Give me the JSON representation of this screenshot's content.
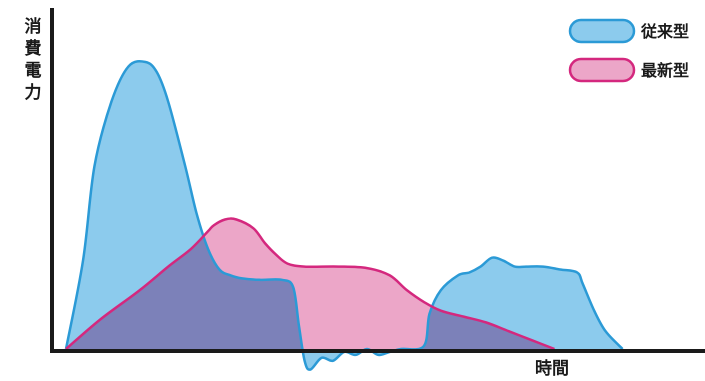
{
  "chart_data": {
    "type": "area",
    "ylabel": "消費電力",
    "xlabel": "時間",
    "xlim": [
      0,
      100
    ],
    "ylim": [
      -3,
      100
    ],
    "legend": {
      "placement": "top-right"
    },
    "series": [
      {
        "name": "従来型",
        "color_fill": "#8ccbed",
        "color_stroke": "#2b9ad6",
        "points": [
          [
            0,
            0
          ],
          [
            3,
            30
          ],
          [
            5,
            62
          ],
          [
            8,
            84
          ],
          [
            11,
            96
          ],
          [
            14,
            97.5
          ],
          [
            16,
            94
          ],
          [
            18,
            84
          ],
          [
            21,
            62
          ],
          [
            23,
            46
          ],
          [
            25,
            34
          ],
          [
            27,
            27
          ],
          [
            29,
            25
          ],
          [
            31,
            24
          ],
          [
            34,
            23.5
          ],
          [
            38,
            23.5
          ],
          [
            40,
            21
          ],
          [
            41,
            8
          ],
          [
            42,
            -4
          ],
          [
            43,
            -7
          ],
          [
            45,
            -3
          ],
          [
            47,
            -4
          ],
          [
            49,
            -1
          ],
          [
            51,
            -2
          ],
          [
            53,
            0
          ],
          [
            55,
            -2
          ],
          [
            57,
            -1
          ],
          [
            59,
            0
          ],
          [
            63,
            1
          ],
          [
            64,
            12
          ],
          [
            66,
            20
          ],
          [
            69,
            25
          ],
          [
            71,
            26
          ],
          [
            73,
            28
          ],
          [
            75,
            31
          ],
          [
            77,
            30
          ],
          [
            79,
            28
          ],
          [
            81,
            28
          ],
          [
            84,
            28
          ],
          [
            87,
            27
          ],
          [
            90,
            26
          ],
          [
            91,
            22
          ],
          [
            93,
            13
          ],
          [
            95,
            6
          ],
          [
            98,
            0
          ]
        ]
      },
      {
        "name": "最新型",
        "color_fill": "#eca6c8",
        "color_stroke": "#d4287e",
        "points": [
          [
            0,
            0
          ],
          [
            6,
            10
          ],
          [
            13,
            20
          ],
          [
            18,
            28
          ],
          [
            22,
            34
          ],
          [
            25,
            40
          ],
          [
            26,
            42
          ],
          [
            28,
            44
          ],
          [
            30,
            44
          ],
          [
            33,
            41
          ],
          [
            35,
            36
          ],
          [
            37,
            32
          ],
          [
            39,
            29
          ],
          [
            42,
            28
          ],
          [
            48,
            28
          ],
          [
            53,
            27.5
          ],
          [
            57,
            25
          ],
          [
            60,
            20
          ],
          [
            63,
            16
          ],
          [
            66,
            13
          ],
          [
            70,
            11
          ],
          [
            74,
            9
          ],
          [
            78,
            6
          ],
          [
            82,
            3
          ],
          [
            86,
            0
          ]
        ]
      }
    ],
    "overlap_color": "#7c81b9"
  }
}
